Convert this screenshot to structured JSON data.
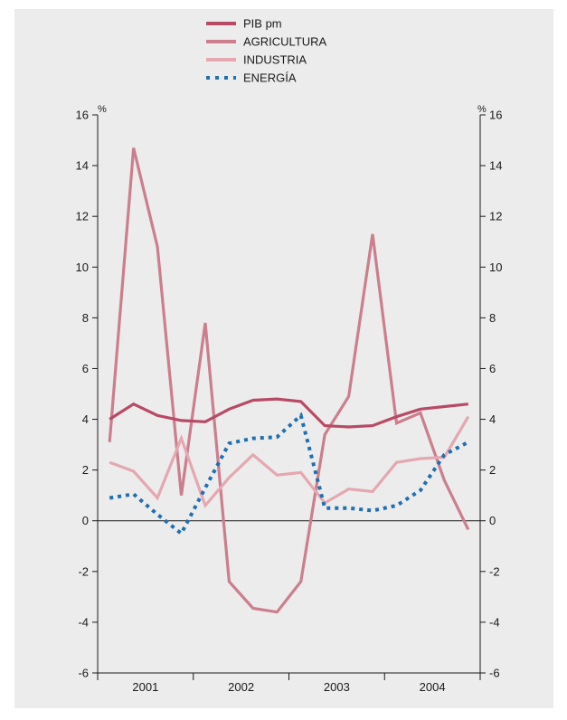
{
  "chart_data": {
    "type": "line",
    "left_unit": "%",
    "right_unit": "%",
    "ylim": [
      -6,
      16
    ],
    "yticks": [
      -6,
      -4,
      -2,
      0,
      2,
      4,
      6,
      8,
      10,
      12,
      14,
      16
    ],
    "ytick_labels": [
      "-6",
      "-4",
      "-2",
      "0",
      "2",
      "4",
      "6",
      "8",
      "10",
      "12",
      "14",
      "16"
    ],
    "xlim": [
      0,
      16
    ],
    "year_labels": [
      "2001",
      "2002",
      "2003",
      "2004"
    ],
    "grid": false,
    "legend_position": "top",
    "series": [
      {
        "name": "PIB pm",
        "color": "#b94a66",
        "style": "solid",
        "x": [
          0.5,
          1.5,
          2.5,
          3.5,
          4.5,
          5.5,
          6.5,
          7.5,
          8.5,
          9.5,
          10.5,
          11.5,
          12.5,
          13.5,
          14.5,
          15.5
        ],
        "values": [
          4.0,
          4.6,
          4.15,
          3.95,
          3.9,
          4.4,
          4.75,
          4.8,
          4.7,
          3.75,
          3.7,
          3.75,
          4.1,
          4.4,
          4.5,
          4.6
        ]
      },
      {
        "name": "AGRICULTURA",
        "color": "#cc7e8d",
        "style": "solid",
        "x": [
          0.5,
          1.5,
          2.5,
          3.5,
          4.5,
          5.5,
          6.5,
          7.5,
          8.5,
          9.5,
          10.5,
          11.5,
          12.5,
          13.5,
          14.5,
          15.5
        ],
        "values": [
          3.1,
          14.7,
          10.8,
          1.0,
          7.8,
          -2.4,
          -3.45,
          -3.6,
          -2.4,
          3.4,
          4.9,
          11.3,
          3.85,
          4.25,
          1.6,
          -0.35
        ]
      },
      {
        "name": "INDUSTRIA",
        "color": "#e5a7b0",
        "style": "solid",
        "x": [
          0.5,
          1.5,
          2.5,
          3.5,
          4.5,
          5.5,
          6.5,
          7.5,
          8.5,
          9.5,
          10.5,
          11.5,
          12.5,
          13.5,
          14.5,
          15.5
        ],
        "values": [
          2.3,
          1.95,
          0.9,
          3.25,
          0.6,
          1.7,
          2.6,
          1.8,
          1.9,
          0.7,
          1.25,
          1.15,
          2.3,
          2.45,
          2.5,
          4.1
        ]
      },
      {
        "name": "ENERGÍA",
        "color": "#1f6fb2",
        "style": "dotted",
        "x": [
          0.5,
          1.5,
          2.5,
          3.5,
          4.5,
          5.5,
          6.5,
          7.5,
          8.5,
          9.5,
          10.5,
          11.5,
          12.5,
          13.5,
          14.5,
          15.5
        ],
        "values": [
          0.9,
          1.05,
          0.25,
          -0.5,
          1.3,
          3.05,
          3.25,
          3.3,
          4.15,
          0.5,
          0.5,
          0.4,
          0.6,
          1.2,
          2.6,
          3.1
        ]
      }
    ]
  }
}
